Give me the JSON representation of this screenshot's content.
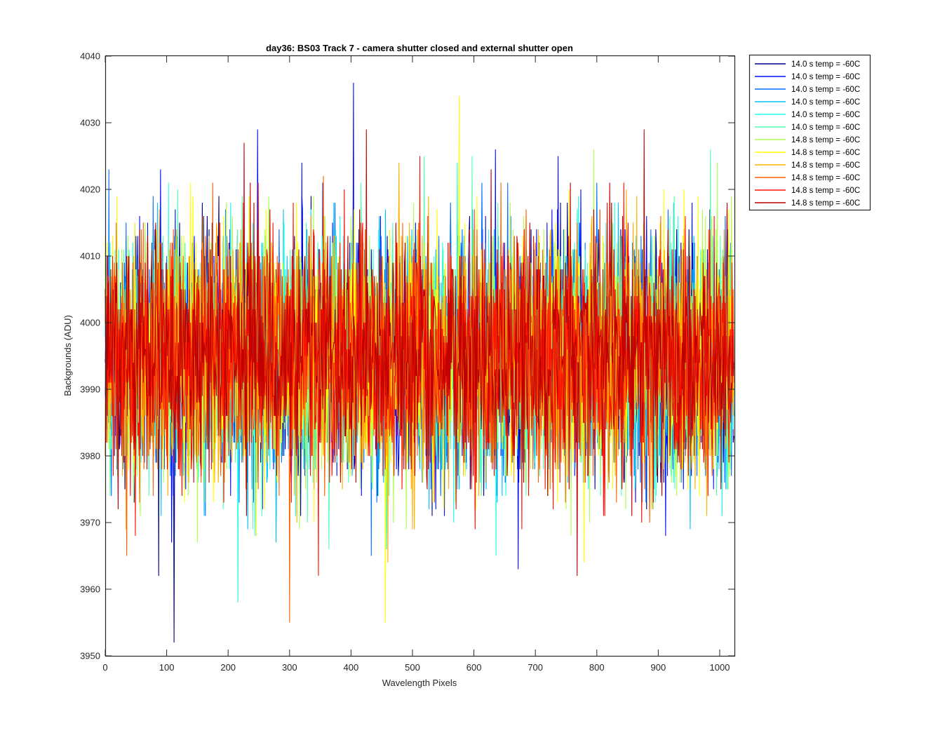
{
  "chart_data": {
    "type": "line",
    "title": "day36: BS03  Track 7 - camera shutter closed and external shutter open",
    "xlabel": "Wavelength Pixels",
    "ylabel": "Backgrounds (ADU)",
    "xlim": [
      0,
      1024
    ],
    "ylim": [
      3950,
      4040
    ],
    "xticks": [
      0,
      100,
      200,
      300,
      400,
      500,
      600,
      700,
      800,
      900,
      1000
    ],
    "yticks": [
      3950,
      3960,
      3970,
      3980,
      3990,
      4000,
      4010,
      4020,
      4030,
      4040
    ],
    "grid": false,
    "legend_position": "outside-top-right",
    "noise_summary": {
      "points_per_series": 1024,
      "typical_band": [
        3975,
        4015
      ],
      "center": 3995
    },
    "notable_extremes": [
      {
        "series": 2,
        "x": 404,
        "y": 4036
      },
      {
        "series": 1,
        "x": 112,
        "y": 3952
      },
      {
        "series": 10,
        "x": 300,
        "y": 3955
      },
      {
        "series": 8,
        "x": 456,
        "y": 3955
      },
      {
        "series": 12,
        "x": 877,
        "y": 4029
      },
      {
        "series": 2,
        "x": 248,
        "y": 4029
      },
      {
        "series": 12,
        "x": 425,
        "y": 4029
      },
      {
        "series": 12,
        "x": 226,
        "y": 4027
      },
      {
        "series": 2,
        "x": 635,
        "y": 4026
      },
      {
        "series": 7,
        "x": 795,
        "y": 4026
      },
      {
        "series": 5,
        "x": 216,
        "y": 3958
      },
      {
        "series": 12,
        "x": 768,
        "y": 3962
      },
      {
        "series": 2,
        "x": 672,
        "y": 3963
      },
      {
        "series": 1,
        "x": 87,
        "y": 3962
      },
      {
        "series": 3,
        "x": 6,
        "y": 4023
      },
      {
        "series": 2,
        "x": 90,
        "y": 4023
      }
    ],
    "series": [
      {
        "name": "14.0 s temp = -60C",
        "color": "#00008f"
      },
      {
        "name": "14.0 s temp = -60C",
        "color": "#0010ff"
      },
      {
        "name": "14.0 s temp = -60C",
        "color": "#0070ff"
      },
      {
        "name": "14.0 s temp = -60C",
        "color": "#00c0ff"
      },
      {
        "name": "14.0 s temp = -60C",
        "color": "#20ffef"
      },
      {
        "name": "14.0 s temp = -60C",
        "color": "#50ffaf"
      },
      {
        "name": "14.8 s temp = -60C",
        "color": "#b0ff50"
      },
      {
        "name": "14.8 s temp = -60C",
        "color": "#ffff00"
      },
      {
        "name": "14.8 s temp = -60C",
        "color": "#ffb000"
      },
      {
        "name": "14.8 s temp = -60C",
        "color": "#ff6000"
      },
      {
        "name": "14.8 s temp = -60C",
        "color": "#ff1000"
      },
      {
        "name": "14.8 s temp = -60C",
        "color": "#bf0000"
      }
    ]
  }
}
